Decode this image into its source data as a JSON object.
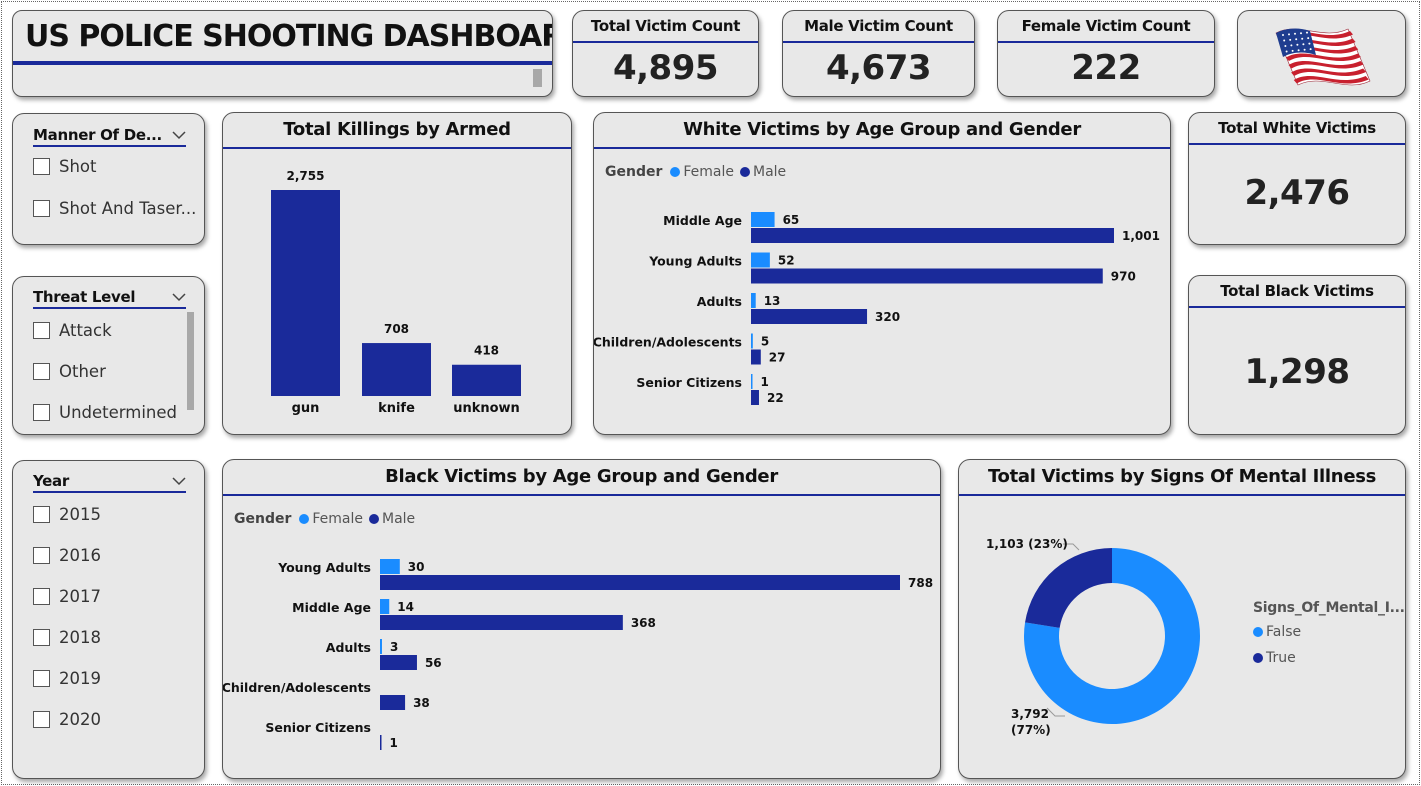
{
  "header": {
    "title": "US POLICE SHOOTING DASHBOARD"
  },
  "kpis": {
    "total": {
      "label": "Total Victim Count",
      "value": "4,895"
    },
    "male": {
      "label": "Male Victim Count",
      "value": "4,673"
    },
    "female": {
      "label": "Female Victim Count",
      "value": "222"
    },
    "white": {
      "label": "Total White Victims",
      "value": "2,476"
    },
    "black": {
      "label": "Total Black Victims",
      "value": "1,298"
    }
  },
  "flag": {
    "icon": "us-flag-icon",
    "colors": {
      "red": "#c8202e",
      "white": "#ffffff",
      "blue": "#1f3d8f"
    }
  },
  "slicers": {
    "manner": {
      "title": "Manner Of De...",
      "options": [
        "Shot",
        "Shot And Taser..."
      ]
    },
    "threat": {
      "title": "Threat Level",
      "options": [
        "Attack",
        "Other",
        "Undetermined"
      ]
    },
    "year": {
      "title": "Year",
      "options": [
        "2015",
        "2016",
        "2017",
        "2018",
        "2019",
        "2020"
      ]
    }
  },
  "colors": {
    "female": "#1a8cff",
    "male": "#1a2a9a",
    "accent": "#1a2a9a",
    "card_bg": "#e8e8e8"
  },
  "charts": {
    "armed": {
      "title": "Total Killings by Armed"
    },
    "white": {
      "title": "White Victims by Age Group and Gender",
      "legend_title": "Gender",
      "legend": [
        "Female",
        "Male"
      ]
    },
    "black": {
      "title": "Black Victims by Age Group and Gender",
      "legend_title": "Gender",
      "legend": [
        "Female",
        "Male"
      ]
    },
    "mental": {
      "title": "Total Victims by Signs Of Mental Illness",
      "legend_title": "Signs_Of_Mental_I...",
      "legend": [
        "False",
        "True"
      ]
    }
  },
  "chart_data": [
    {
      "type": "bar",
      "title": "Total Killings by Armed",
      "categories": [
        "gun",
        "knife",
        "unknown"
      ],
      "values": [
        2755,
        708,
        418
      ],
      "value_labels": [
        "2,755",
        "708",
        "418"
      ]
    },
    {
      "type": "bar",
      "orientation": "horizontal",
      "title": "White Victims by Age Group and Gender",
      "categories": [
        "Middle Age",
        "Young Adults",
        "Adults",
        "Children/Adolescents",
        "Senior Citizens"
      ],
      "series": [
        {
          "name": "Female",
          "values": [
            65,
            52,
            13,
            5,
            1
          ],
          "value_labels": [
            "65",
            "52",
            "13",
            "5",
            "1"
          ]
        },
        {
          "name": "Male",
          "values": [
            1001,
            970,
            320,
            27,
            22
          ],
          "value_labels": [
            "1,001",
            "970",
            "320",
            "27",
            "22"
          ]
        }
      ],
      "legend_title": "Gender",
      "legend_position": "top-left"
    },
    {
      "type": "bar",
      "orientation": "horizontal",
      "title": "Black Victims by Age Group and Gender",
      "categories": [
        "Young Adults",
        "Middle Age",
        "Adults",
        "Children/Adolescents",
        "Senior Citizens"
      ],
      "series": [
        {
          "name": "Female",
          "values": [
            30,
            14,
            3,
            0,
            0
          ],
          "value_labels": [
            "30",
            "14",
            "3",
            "",
            ""
          ]
        },
        {
          "name": "Male",
          "values": [
            788,
            368,
            56,
            38,
            1
          ],
          "value_labels": [
            "788",
            "368",
            "56",
            "38",
            "1"
          ]
        }
      ],
      "legend_title": "Gender",
      "legend_position": "top-left"
    },
    {
      "type": "pie",
      "donut": true,
      "title": "Total Victims by Signs Of Mental Illness",
      "categories": [
        "False",
        "True"
      ],
      "values": [
        3792,
        1103
      ],
      "value_labels": [
        "3,792 (77%)",
        "1,103 (23%)"
      ],
      "legend_title": "Signs_Of_Mental_I...",
      "legend_position": "right"
    }
  ]
}
